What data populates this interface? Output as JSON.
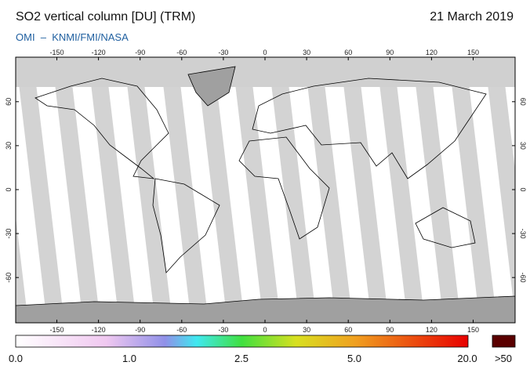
{
  "header": {
    "title": "SO2 vertical column [DU] (TRM)",
    "date": "21 March 2019",
    "credit": "OMI  –  KNMI/FMI/NASA"
  },
  "map": {
    "lon_ticks": [
      -150,
      -120,
      -90,
      -60,
      -30,
      0,
      30,
      60,
      90,
      120,
      150
    ],
    "lat_ticks": [
      60,
      30,
      0,
      -30,
      -60
    ]
  },
  "colorbar": {
    "labels": [
      "0.0",
      "1.0",
      "2.5",
      "5.0",
      "20.0",
      ">50"
    ]
  }
}
